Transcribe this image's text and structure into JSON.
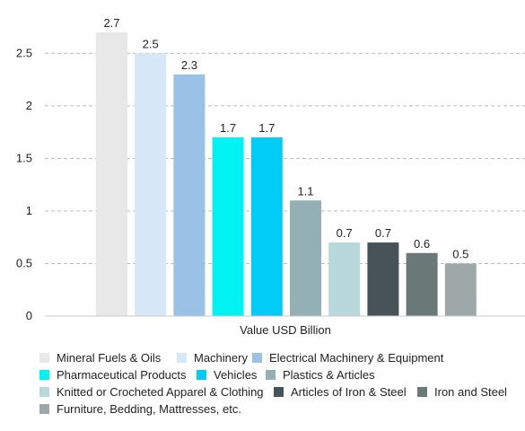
{
  "chart_data": {
    "type": "bar",
    "xlabel": "Value USD Billion",
    "ylabel": "",
    "ylim": [
      0,
      2.7
    ],
    "yticks": [
      0,
      0.5,
      1,
      1.5,
      2,
      2.5
    ],
    "ytick_labels": [
      "0",
      "0.5",
      "1",
      "1.5",
      "2",
      "2.5"
    ],
    "grid": true,
    "legend_position": "bottom",
    "series": [
      {
        "name": "Mineral Fuels & Oils",
        "value": 2.7,
        "label": "2.7",
        "color": "#e8e8e8"
      },
      {
        "name": "Machinery",
        "value": 2.5,
        "label": "2.5",
        "color": "#d6e7f8"
      },
      {
        "name": "Electrical Machinery & Equipment",
        "value": 2.3,
        "label": "2.3",
        "color": "#99c2e6"
      },
      {
        "name": "Pharmaceutical Products",
        "value": 1.7,
        "label": "1.7",
        "color": "#00f2f2"
      },
      {
        "name": "Vehicles",
        "value": 1.7,
        "label": "1.7",
        "color": "#00ccf5"
      },
      {
        "name": "Plastics & Articles",
        "value": 1.1,
        "label": "1.1",
        "color": "#93b0b4"
      },
      {
        "name": "Knitted or Crocheted Apparel & Clothing",
        "value": 0.7,
        "label": "0.7",
        "color": "#b9d8dc"
      },
      {
        "name": "Articles of Iron & Steel",
        "value": 0.7,
        "label": "0.7",
        "color": "#475357"
      },
      {
        "name": "Iron and Steel",
        "value": 0.6,
        "label": "0.6",
        "color": "#6b7878"
      },
      {
        "name": "Furniture, Bedding, Mattresses, etc.",
        "value": 0.5,
        "label": "0.5",
        "color": "#9ea8a8"
      }
    ]
  }
}
